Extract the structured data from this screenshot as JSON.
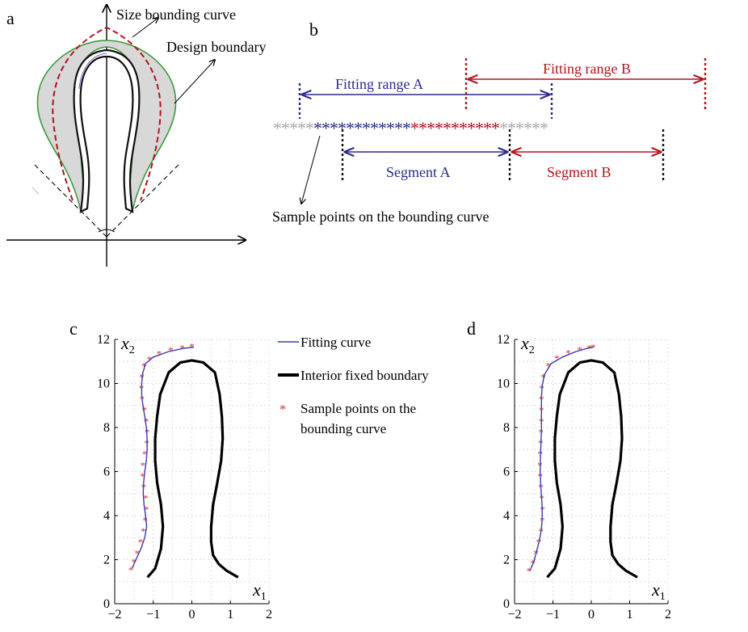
{
  "panel_a": {
    "letter": "a",
    "label_size_curve": "Size bounding curve",
    "label_design_boundary": "Design boundary"
  },
  "panel_b": {
    "letter": "b",
    "fitting_range_a": "Fitting range A",
    "fitting_range_b": "Fitting range B",
    "segment_a": "Segment A",
    "segment_b": "Segment B",
    "sample_points": "Sample points on the bounding curve",
    "stars_gray_left": "*****",
    "stars_blue": "************",
    "stars_red": "***********",
    "stars_gray_right": "******",
    "colors": {
      "blue": "#2a2a8c",
      "red": "#b5121b",
      "gray": "#a8a8a8"
    }
  },
  "panel_c": {
    "letter": "c"
  },
  "panel_d": {
    "letter": "d"
  },
  "legend": {
    "fitting_curve": "Fitting curve",
    "interior_boundary": "Interior fixed boundary",
    "sample_points_line1": "Sample points on the",
    "sample_points_line2": "bounding curve",
    "colors": {
      "fitting_curve": "#3a3ab0",
      "interior_boundary": "#000000",
      "sample_points": "#d23a3a"
    }
  },
  "chart_data": [
    {
      "panel": "c",
      "type": "line",
      "xlabel_symbol": "x",
      "xlabel_sub": "1",
      "ylabel_symbol": "x",
      "ylabel_sub": "2",
      "xlim": [
        -2,
        2
      ],
      "ylim": [
        0,
        12
      ],
      "xticks": [
        "−2",
        "−1",
        "0",
        "1",
        "2"
      ],
      "yticks": [
        "0",
        "2",
        "4",
        "6",
        "8",
        "10",
        "12"
      ],
      "grid": true,
      "series": [
        {
          "name": "Fitting curve",
          "x": [
            -1.55,
            -1.45,
            -1.32,
            -1.22,
            -1.17,
            -1.2,
            -1.24,
            -1.26,
            -1.25,
            -1.22,
            -1.18,
            -1.16,
            -1.16,
            -1.18,
            -1.22,
            -1.27,
            -1.3,
            -1.3,
            -1.27,
            -1.2,
            -1.0,
            -0.6,
            -0.2,
            0.05
          ],
          "y": [
            1.6,
            2.0,
            2.5,
            3.0,
            3.5,
            4.0,
            4.5,
            5.0,
            5.5,
            6.0,
            6.5,
            7.0,
            7.5,
            8.0,
            8.5,
            9.0,
            9.5,
            10.0,
            10.5,
            10.9,
            11.2,
            11.45,
            11.6,
            11.65
          ]
        },
        {
          "name": "Interior fixed boundary",
          "x": [
            -1.15,
            -0.95,
            -0.8,
            -0.75,
            -0.8,
            -0.9,
            -0.95,
            -0.95,
            -0.9,
            -0.82,
            -0.6,
            -0.3,
            0.0,
            0.3,
            0.6,
            0.72,
            0.78,
            0.8,
            0.76,
            0.66,
            0.55,
            0.5,
            0.5,
            0.55,
            0.7,
            0.9,
            1.2
          ],
          "y": [
            1.2,
            1.6,
            2.5,
            3.5,
            4.5,
            5.5,
            6.5,
            7.5,
            8.5,
            9.5,
            10.5,
            10.95,
            11.05,
            10.95,
            10.5,
            9.5,
            8.5,
            7.5,
            6.5,
            5.5,
            4.5,
            3.5,
            2.8,
            2.2,
            1.8,
            1.5,
            1.2
          ]
        },
        {
          "name": "Sample points on the bounding curve",
          "marker": "*",
          "x": [
            -1.58,
            -1.5,
            -1.42,
            -1.33,
            -1.26,
            -1.21,
            -1.18,
            -1.2,
            -1.25,
            -1.28,
            -1.27,
            -1.22,
            -1.17,
            -1.16,
            -1.18,
            -1.23,
            -1.29,
            -1.31,
            -1.3,
            -1.24,
            -1.1,
            -0.85,
            -0.55,
            -0.25,
            0.0
          ],
          "y": [
            1.55,
            1.9,
            2.3,
            2.8,
            3.3,
            3.8,
            4.3,
            4.8,
            5.3,
            5.8,
            6.3,
            6.8,
            7.3,
            7.8,
            8.3,
            8.8,
            9.3,
            9.8,
            10.3,
            10.8,
            11.1,
            11.35,
            11.52,
            11.62,
            11.68
          ]
        }
      ]
    },
    {
      "panel": "d",
      "type": "line",
      "xlabel_symbol": "x",
      "xlabel_sub": "1",
      "ylabel_symbol": "x",
      "ylabel_sub": "2",
      "xlim": [
        -2,
        2
      ],
      "ylim": [
        0,
        12
      ],
      "xticks": [
        "−2",
        "−1",
        "0",
        "1",
        "2"
      ],
      "yticks": [
        "0",
        "2",
        "4",
        "6",
        "8",
        "10",
        "12"
      ],
      "grid": true,
      "series": [
        {
          "name": "Fitting curve",
          "x": [
            -1.6,
            -1.5,
            -1.42,
            -1.35,
            -1.3,
            -1.28,
            -1.28,
            -1.3,
            -1.32,
            -1.33,
            -1.33,
            -1.32,
            -1.31,
            -1.3,
            -1.3,
            -1.3,
            -1.3,
            -1.28,
            -1.22,
            -1.05,
            -0.75,
            -0.4,
            -0.1,
            0.05
          ],
          "y": [
            1.5,
            1.9,
            2.4,
            2.9,
            3.4,
            3.9,
            4.4,
            4.9,
            5.4,
            5.9,
            6.4,
            6.9,
            7.4,
            7.9,
            8.4,
            8.9,
            9.4,
            9.9,
            10.4,
            10.9,
            11.2,
            11.45,
            11.6,
            11.65
          ]
        },
        {
          "name": "Interior fixed boundary",
          "x": [
            -1.15,
            -0.95,
            -0.8,
            -0.75,
            -0.8,
            -0.9,
            -0.95,
            -0.95,
            -0.9,
            -0.82,
            -0.6,
            -0.3,
            0.0,
            0.3,
            0.6,
            0.72,
            0.78,
            0.8,
            0.76,
            0.66,
            0.55,
            0.5,
            0.5,
            0.55,
            0.7,
            0.9,
            1.2
          ],
          "y": [
            1.2,
            1.6,
            2.5,
            3.5,
            4.5,
            5.5,
            6.5,
            7.5,
            8.5,
            9.5,
            10.5,
            10.95,
            11.05,
            10.95,
            10.5,
            9.5,
            8.5,
            7.5,
            6.5,
            5.5,
            4.5,
            3.5,
            2.8,
            2.2,
            1.8,
            1.5,
            1.2
          ]
        },
        {
          "name": "Sample points on the bounding curve",
          "marker": "*",
          "x": [
            -1.62,
            -1.52,
            -1.44,
            -1.37,
            -1.31,
            -1.28,
            -1.27,
            -1.29,
            -1.31,
            -1.33,
            -1.34,
            -1.33,
            -1.32,
            -1.31,
            -1.3,
            -1.3,
            -1.3,
            -1.29,
            -1.25,
            -1.12,
            -0.9,
            -0.6,
            -0.3,
            -0.05,
            0.05
          ],
          "y": [
            1.5,
            1.85,
            2.3,
            2.8,
            3.3,
            3.8,
            4.3,
            4.8,
            5.3,
            5.8,
            6.3,
            6.8,
            7.3,
            7.8,
            8.3,
            8.8,
            9.3,
            9.8,
            10.3,
            10.8,
            11.15,
            11.4,
            11.55,
            11.62,
            11.65
          ]
        }
      ]
    }
  ]
}
